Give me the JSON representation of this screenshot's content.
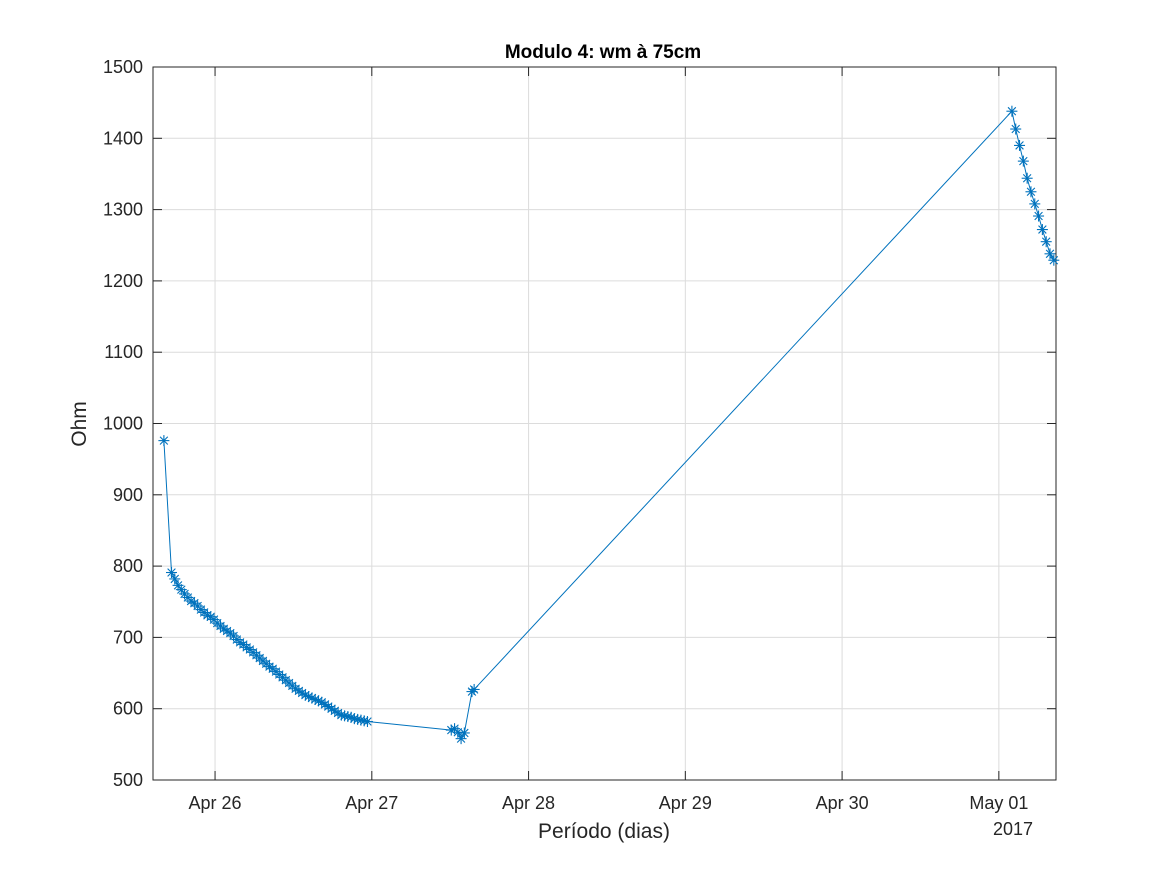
{
  "chart_data": {
    "type": "line",
    "title": "Modulo 4: wm à 75cm",
    "xlabel": "Período (dias)",
    "ylabel": "Ohm",
    "x_axis_secondary_label": "2017",
    "x_ticks": [
      "2017-04-26",
      "2017-04-27",
      "2017-04-28",
      "2017-04-29",
      "2017-04-30",
      "2017-05-01"
    ],
    "x_tick_labels": [
      "Apr 26",
      "Apr 27",
      "Apr 28",
      "Apr 29",
      "Apr 30",
      "May 01"
    ],
    "xlim": [
      "2017-04-25 14:30",
      "2017-05-01 08:45"
    ],
    "ylim": [
      500,
      1500
    ],
    "y_ticks": [
      500,
      600,
      700,
      800,
      900,
      1000,
      1100,
      1200,
      1300,
      1400,
      1500
    ],
    "grid": true,
    "line_color": "#0072BD",
    "marker": "asterisk",
    "series": [
      {
        "x": [
          "2017-04-25 16:10",
          "2017-04-25 17:20",
          "2017-04-25 17:50",
          "2017-04-25 18:20",
          "2017-04-25 18:50",
          "2017-04-25 19:20",
          "2017-04-25 19:50",
          "2017-04-25 20:20",
          "2017-04-25 20:50",
          "2017-04-25 21:20",
          "2017-04-25 21:50",
          "2017-04-25 22:20",
          "2017-04-25 22:50",
          "2017-04-25 23:20",
          "2017-04-25 23:50",
          "2017-04-26 00:20",
          "2017-04-26 00:50",
          "2017-04-26 01:20",
          "2017-04-26 01:50",
          "2017-04-26 02:20",
          "2017-04-26 02:50",
          "2017-04-26 03:20",
          "2017-04-26 03:50",
          "2017-04-26 04:20",
          "2017-04-26 04:50",
          "2017-04-26 05:20",
          "2017-04-26 05:50",
          "2017-04-26 06:20",
          "2017-04-26 06:50",
          "2017-04-26 07:20",
          "2017-04-26 07:50",
          "2017-04-26 08:20",
          "2017-04-26 08:50",
          "2017-04-26 09:20",
          "2017-04-26 09:50",
          "2017-04-26 10:20",
          "2017-04-26 10:50",
          "2017-04-26 11:20",
          "2017-04-26 11:50",
          "2017-04-26 12:20",
          "2017-04-26 12:50",
          "2017-04-26 13:20",
          "2017-04-26 13:50",
          "2017-04-26 14:20",
          "2017-04-26 14:50",
          "2017-04-26 15:20",
          "2017-04-26 15:50",
          "2017-04-26 16:20",
          "2017-04-26 16:50",
          "2017-04-26 17:20",
          "2017-04-26 17:50",
          "2017-04-26 18:20",
          "2017-04-26 18:50",
          "2017-04-26 19:20",
          "2017-04-26 19:50",
          "2017-04-26 20:20",
          "2017-04-26 20:50",
          "2017-04-26 21:20",
          "2017-04-26 21:50",
          "2017-04-26 22:20",
          "2017-04-26 22:50",
          "2017-04-26 23:20",
          "2017-04-27 12:10",
          "2017-04-27 12:40",
          "2017-04-27 13:10",
          "2017-04-27 13:40",
          "2017-04-27 14:10",
          "2017-04-27 15:20",
          "2017-04-27 15:40",
          "2017-05-01 02:00",
          "2017-05-01 02:35",
          "2017-05-01 03:10",
          "2017-05-01 03:45",
          "2017-05-01 04:20",
          "2017-05-01 04:55",
          "2017-05-01 05:30",
          "2017-05-01 06:05",
          "2017-05-01 06:40",
          "2017-05-01 07:15",
          "2017-05-01 07:50",
          "2017-05-01 08:25"
        ],
        "y": [
          976,
          791,
          782,
          773,
          767,
          761,
          756,
          751,
          748,
          744,
          739,
          735,
          731,
          729,
          725,
          720,
          716,
          712,
          709,
          706,
          702,
          697,
          693,
          690,
          686,
          683,
          679,
          675,
          671,
          667,
          663,
          659,
          656,
          652,
          648,
          644,
          640,
          636,
          632,
          628,
          625,
          622,
          619,
          617,
          615,
          613,
          611,
          609,
          606,
          603,
          600,
          597,
          594,
          591,
          590,
          589,
          588,
          586,
          585,
          584,
          583,
          582,
          570,
          572,
          567,
          558,
          566,
          624,
          627,
          1438,
          1413,
          1390,
          1368,
          1344,
          1325,
          1308,
          1291,
          1272,
          1255,
          1238,
          1229
        ]
      }
    ]
  }
}
